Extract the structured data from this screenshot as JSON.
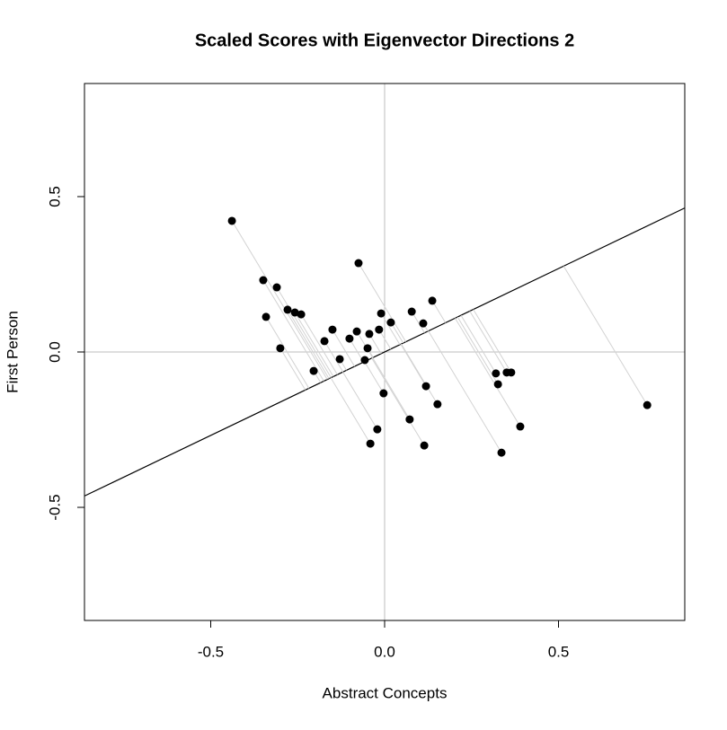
{
  "chart_data": {
    "type": "scatter",
    "title": "Scaled Scores with Eigenvector Directions 2",
    "xlabel": "Abstract Concepts",
    "ylabel": "First Person",
    "xlim": [
      -0.863,
      0.863
    ],
    "ylim": [
      -0.864,
      0.864
    ],
    "xticks": [
      -0.5,
      {
        "value": 0,
        "label": "0.0"
      },
      0.5
    ],
    "yticks": [
      -0.5,
      {
        "value": 0,
        "label": "0.0"
      },
      0.5
    ],
    "color": "#000000",
    "projection_color": "#d3d3d3",
    "reference_color": "#bebebe",
    "eigenvector_slope": 0.537,
    "x": [
      -0.439,
      -0.349,
      -0.31,
      -0.341,
      -0.3,
      -0.279,
      -0.258,
      -0.24,
      -0.204,
      -0.173,
      -0.15,
      -0.129,
      -0.101,
      -0.08,
      -0.075,
      -0.057,
      -0.049,
      -0.044,
      -0.041,
      -0.021,
      -0.016,
      -0.01,
      -0.003,
      0.018,
      0.072,
      0.078,
      0.111,
      0.114,
      0.119,
      0.137,
      0.152,
      0.32,
      0.326,
      0.336,
      0.351,
      0.364,
      0.39,
      0.755
    ],
    "values": [
      0.422,
      0.231,
      0.208,
      0.113,
      0.012,
      0.136,
      0.127,
      0.121,
      -0.061,
      0.035,
      0.072,
      -0.023,
      0.043,
      0.066,
      0.286,
      -0.026,
      0.012,
      0.058,
      -0.295,
      -0.249,
      0.072,
      0.124,
      -0.133,
      0.095,
      -0.217,
      0.13,
      0.092,
      -0.301,
      -0.11,
      0.165,
      -0.168,
      -0.069,
      -0.104,
      -0.324,
      -0.066,
      -0.066,
      -0.24,
      -0.171
    ]
  }
}
